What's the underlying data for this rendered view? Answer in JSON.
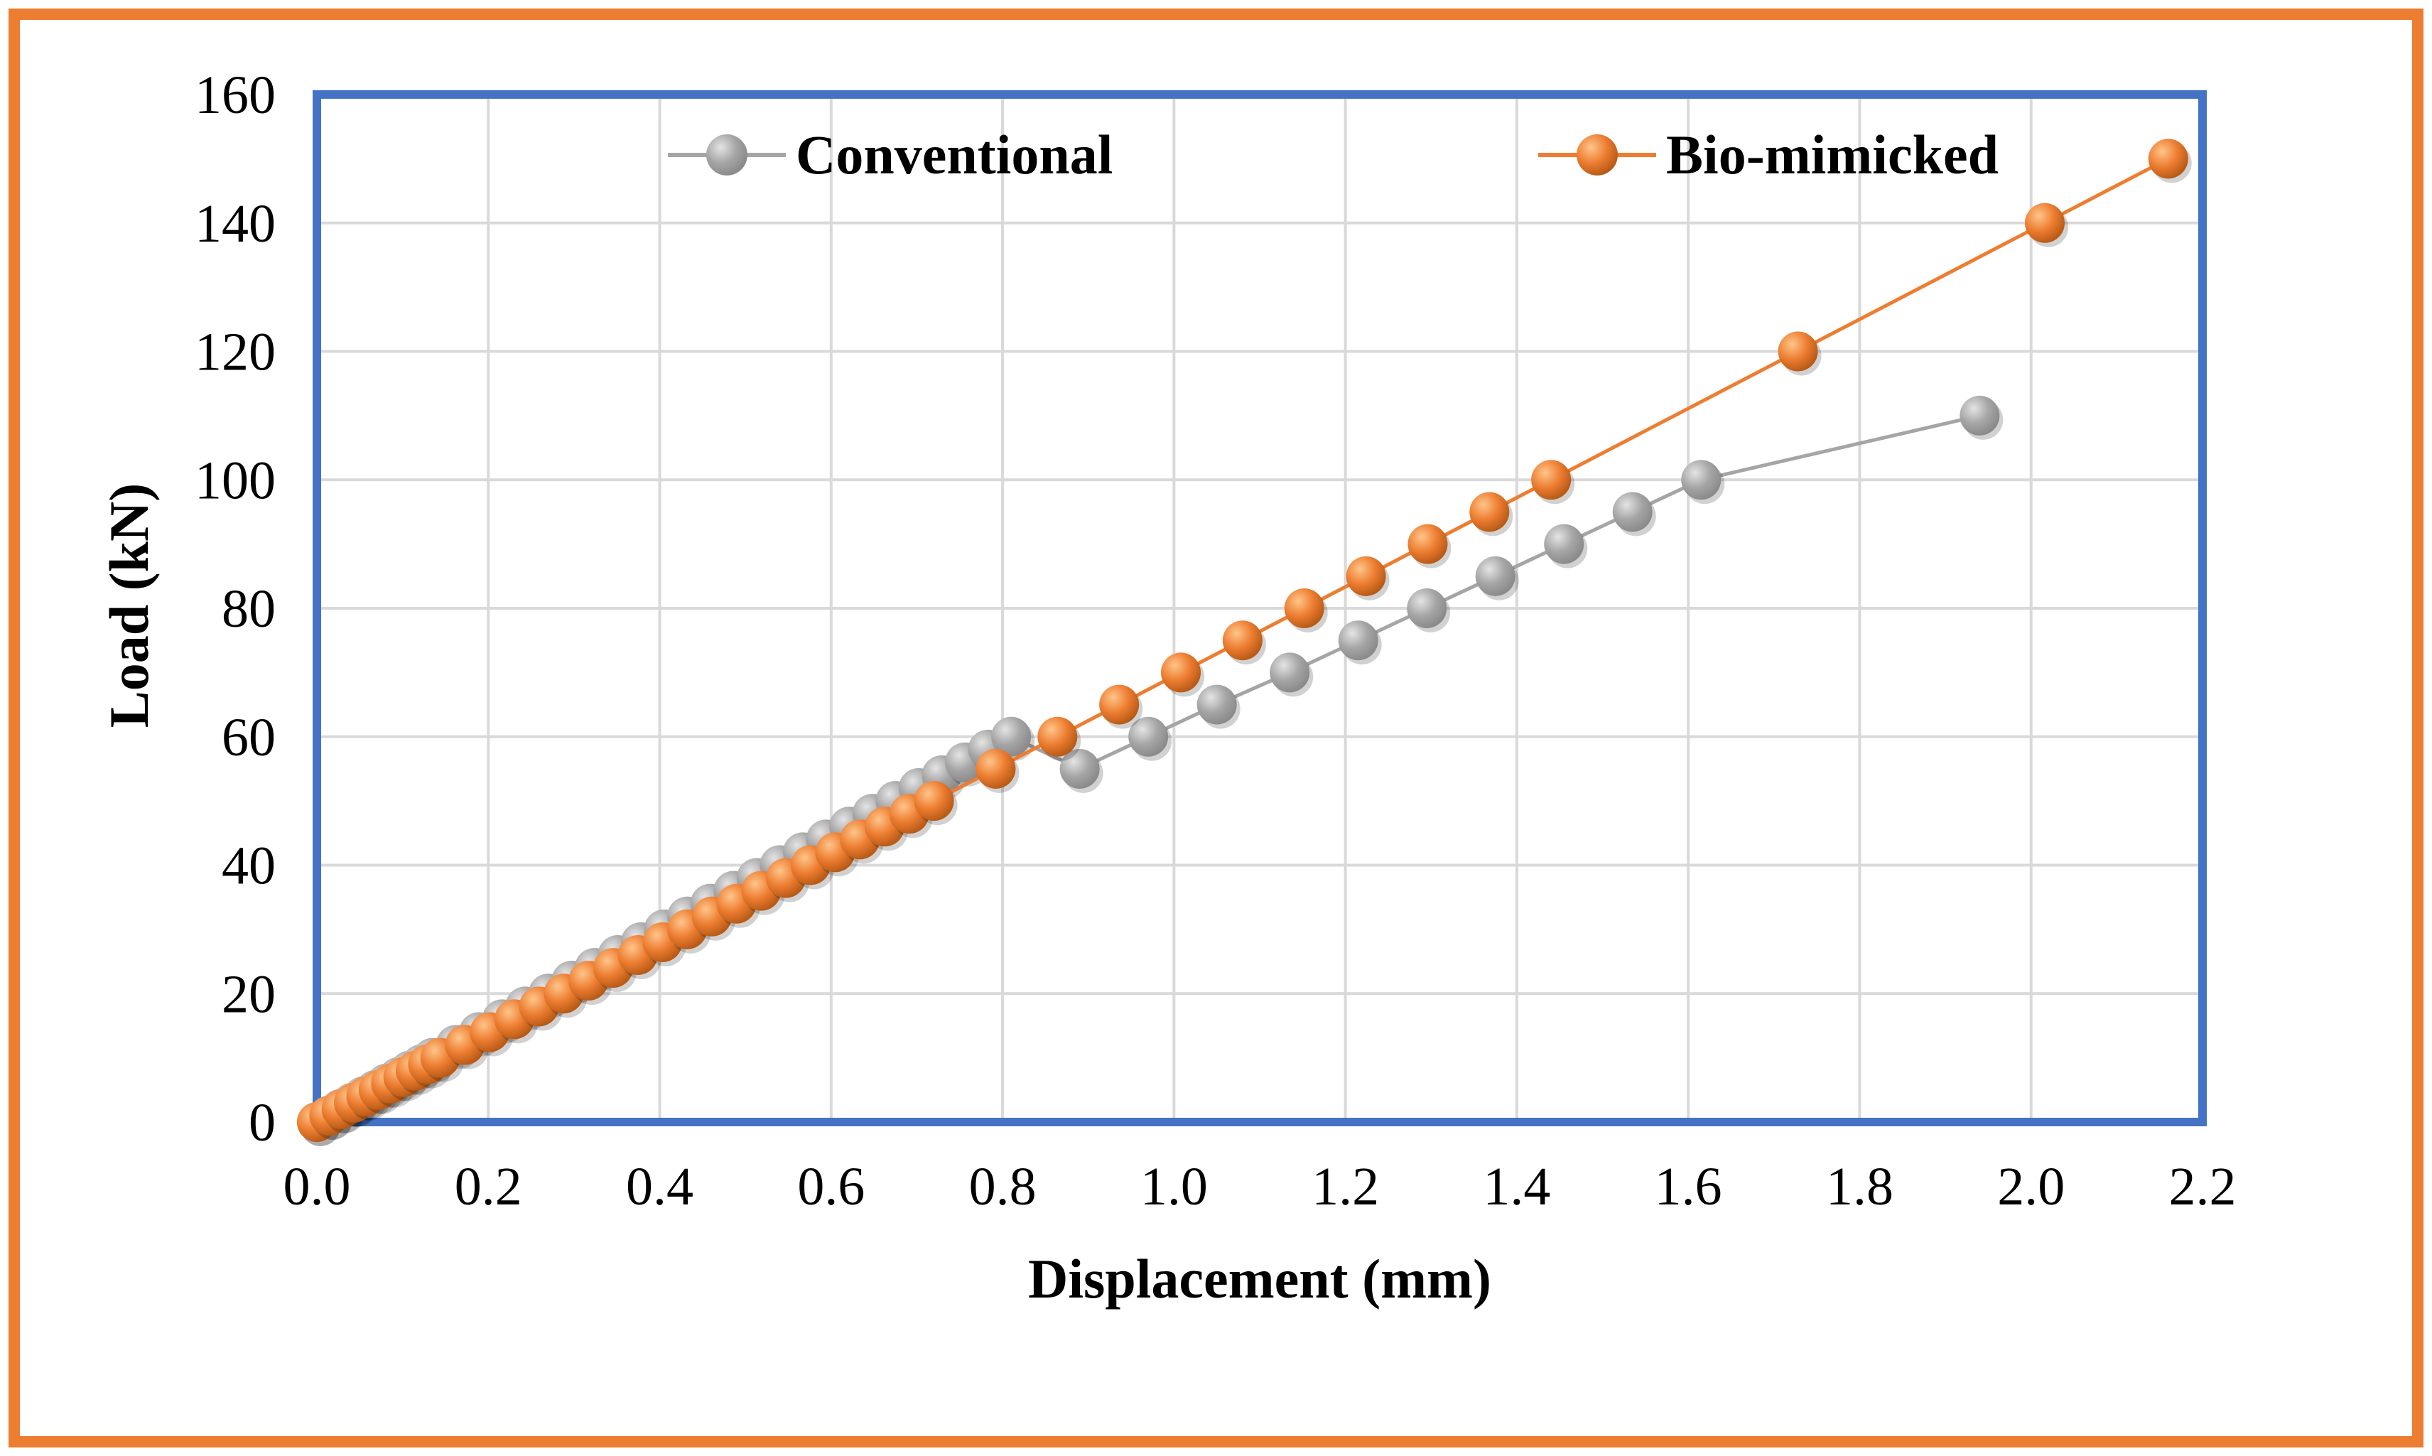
{
  "colors": {
    "outer_border": "#ED7D31",
    "plot_border": "#4472C4",
    "grid": "#D9D9D9",
    "conventional": "#A5A5A5",
    "conventional_light": "#E4E4E4",
    "conventional_dark": "#8A8A8A",
    "biomimicked": "#ED7D31",
    "biomimicked_light": "#FFC58A",
    "biomimicked_dark": "#B85A16"
  },
  "chart_data": {
    "type": "line",
    "title": "",
    "xlabel": "Displacement (mm)",
    "ylabel": "Load (kN)",
    "xlim": [
      0.0,
      2.2
    ],
    "ylim": [
      0,
      160
    ],
    "x_ticks": [
      0.0,
      0.2,
      0.4,
      0.6,
      0.8,
      1.0,
      1.2,
      1.4,
      1.6,
      1.8,
      2.0,
      2.2
    ],
    "x_tick_labels": [
      "0.0",
      "0.2",
      "0.4",
      "0.6",
      "0.8",
      "1.0",
      "1.2",
      "1.4",
      "1.6",
      "1.8",
      "2.0",
      "2.2"
    ],
    "y_ticks": [
      0,
      20,
      40,
      60,
      80,
      100,
      120,
      140,
      160
    ],
    "y_tick_labels": [
      "0",
      "20",
      "40",
      "60",
      "80",
      "100",
      "120",
      "140",
      "160"
    ],
    "grid": true,
    "legend_position": "top",
    "series": [
      {
        "name": "Conventional",
        "color_key": "conventional",
        "points": [
          [
            0.0,
            0
          ],
          [
            0.014,
            1
          ],
          [
            0.027,
            2
          ],
          [
            0.041,
            3
          ],
          [
            0.054,
            4
          ],
          [
            0.068,
            5
          ],
          [
            0.081,
            6
          ],
          [
            0.095,
            7
          ],
          [
            0.108,
            8
          ],
          [
            0.122,
            9
          ],
          [
            0.135,
            10
          ],
          [
            0.162,
            12
          ],
          [
            0.189,
            14
          ],
          [
            0.216,
            16
          ],
          [
            0.243,
            18
          ],
          [
            0.27,
            20
          ],
          [
            0.297,
            22
          ],
          [
            0.324,
            24
          ],
          [
            0.351,
            26
          ],
          [
            0.378,
            28
          ],
          [
            0.405,
            30
          ],
          [
            0.432,
            32
          ],
          [
            0.459,
            34
          ],
          [
            0.486,
            36
          ],
          [
            0.513,
            38
          ],
          [
            0.54,
            40
          ],
          [
            0.567,
            42
          ],
          [
            0.594,
            44
          ],
          [
            0.621,
            46
          ],
          [
            0.648,
            48
          ],
          [
            0.675,
            50
          ],
          [
            0.702,
            52
          ],
          [
            0.729,
            54
          ],
          [
            0.756,
            56
          ],
          [
            0.783,
            58
          ],
          [
            0.81,
            60
          ],
          [
            0.89,
            55
          ],
          [
            0.97,
            60
          ],
          [
            1.05,
            65
          ],
          [
            1.135,
            70
          ],
          [
            1.215,
            75
          ],
          [
            1.295,
            80
          ],
          [
            1.375,
            85
          ],
          [
            1.455,
            90
          ],
          [
            1.535,
            95
          ],
          [
            1.615,
            100
          ],
          [
            1.94,
            110
          ]
        ]
      },
      {
        "name": "Bio-mimicked",
        "color_key": "biomimicked",
        "points": [
          [
            0.0,
            0
          ],
          [
            0.0144,
            1
          ],
          [
            0.0288,
            2
          ],
          [
            0.0432,
            3
          ],
          [
            0.0576,
            4
          ],
          [
            0.072,
            5
          ],
          [
            0.0864,
            6
          ],
          [
            0.1008,
            7
          ],
          [
            0.1152,
            8
          ],
          [
            0.1296,
            9
          ],
          [
            0.144,
            10
          ],
          [
            0.1728,
            12
          ],
          [
            0.2016,
            14
          ],
          [
            0.2304,
            16
          ],
          [
            0.2592,
            18
          ],
          [
            0.288,
            20
          ],
          [
            0.3168,
            22
          ],
          [
            0.3456,
            24
          ],
          [
            0.3744,
            26
          ],
          [
            0.4032,
            28
          ],
          [
            0.432,
            30
          ],
          [
            0.4608,
            32
          ],
          [
            0.4896,
            34
          ],
          [
            0.5184,
            36
          ],
          [
            0.5472,
            38
          ],
          [
            0.576,
            40
          ],
          [
            0.6048,
            42
          ],
          [
            0.6336,
            44
          ],
          [
            0.6624,
            46
          ],
          [
            0.6912,
            48
          ],
          [
            0.72,
            50
          ],
          [
            0.792,
            55
          ],
          [
            0.864,
            60
          ],
          [
            0.936,
            65
          ],
          [
            1.008,
            70
          ],
          [
            1.08,
            75
          ],
          [
            1.152,
            80
          ],
          [
            1.224,
            85
          ],
          [
            1.296,
            90
          ],
          [
            1.368,
            95
          ],
          [
            1.44,
            100
          ],
          [
            1.728,
            120
          ],
          [
            2.016,
            140
          ],
          [
            2.16,
            150
          ]
        ]
      }
    ]
  }
}
